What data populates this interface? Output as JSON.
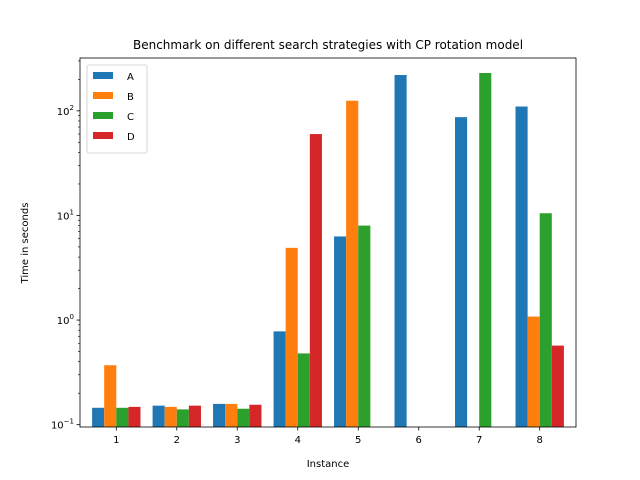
{
  "chart_data": {
    "type": "bar",
    "title": "Benchmark on different search strategies with CP rotation model",
    "xlabel": "Instance",
    "ylabel": "Time in seconds",
    "yscale": "log",
    "ylim": [
      0.095,
      320
    ],
    "yticks": [
      {
        "value": 0.1,
        "base": "10",
        "exp": "−1"
      },
      {
        "value": 1,
        "base": "10",
        "exp": "0"
      },
      {
        "value": 10,
        "base": "10",
        "exp": "1"
      },
      {
        "value": 100,
        "base": "10",
        "exp": "2"
      }
    ],
    "categories": [
      "1",
      "2",
      "3",
      "4",
      "5",
      "6",
      "7",
      "8"
    ],
    "legend_position": "upper-left",
    "grid": false,
    "series": [
      {
        "name": "A",
        "color": "#1f77b4",
        "values": [
          0.145,
          0.152,
          0.158,
          0.78,
          6.3,
          220,
          87,
          110
        ]
      },
      {
        "name": "B",
        "color": "#ff7f0e",
        "values": [
          0.37,
          0.148,
          0.158,
          4.9,
          125,
          null,
          null,
          1.08
        ]
      },
      {
        "name": "C",
        "color": "#2ca02c",
        "values": [
          0.145,
          0.14,
          0.142,
          0.48,
          8.0,
          null,
          230,
          10.5
        ]
      },
      {
        "name": "D",
        "color": "#d62728",
        "values": [
          0.148,
          0.152,
          0.155,
          60,
          null,
          null,
          null,
          0.57
        ]
      }
    ]
  }
}
